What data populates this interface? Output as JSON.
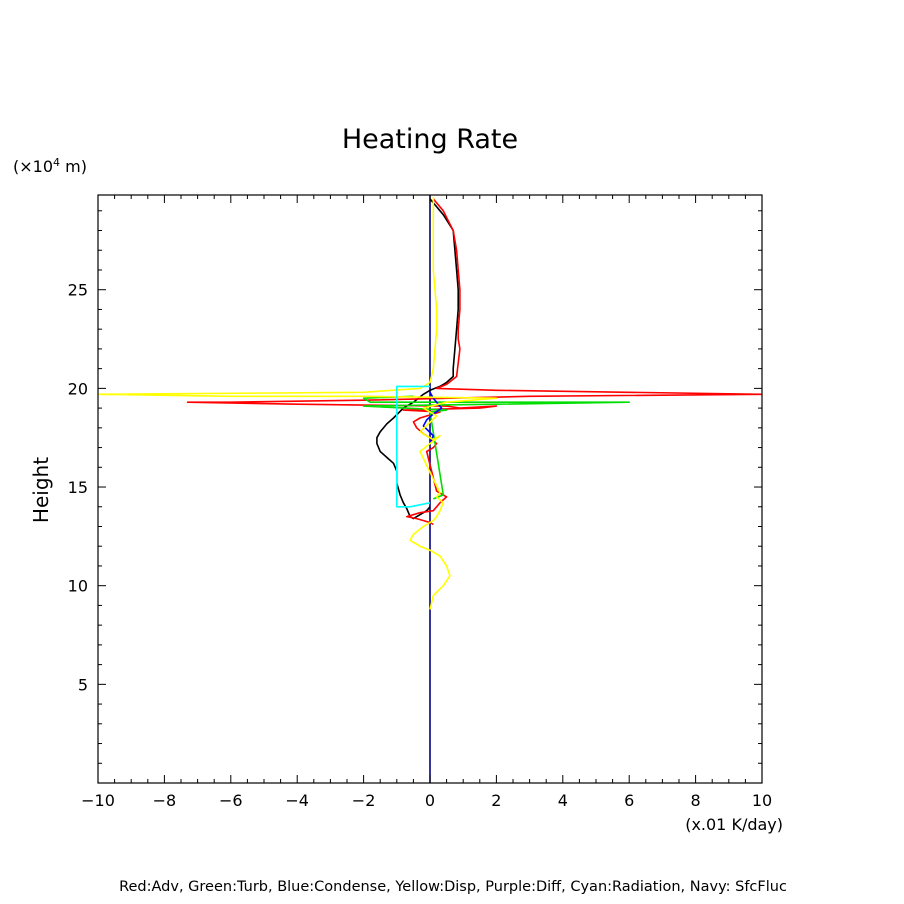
{
  "chart_data": {
    "type": "line",
    "title": "Heating Rate",
    "ylabel": "Height",
    "ylabel_unit": "(×10",
    "ylabel_unit_exp": "4",
    "ylabel_unit_suffix": " m)",
    "xlabel_unit": "(x.01 K/day)",
    "xlim": [
      -10,
      10
    ],
    "ylim": [
      0,
      29.8
    ],
    "x_ticks": [
      -10,
      -8,
      -6,
      -4,
      -2,
      0,
      2,
      4,
      6,
      8,
      10
    ],
    "x_tick_labels": [
      "−10",
      "−8",
      "−6",
      "−4",
      "−2",
      "0",
      "2",
      "4",
      "6",
      "8",
      "10"
    ],
    "y_ticks": [
      5,
      10,
      15,
      20,
      25
    ],
    "y_tick_labels": [
      "5",
      "10",
      "15",
      "20",
      "25"
    ],
    "grid": false,
    "legend_text": "Red:Adv, Green:Turb, Blue:Condense, Yellow:Disp, Purple:Diff, Cyan:Radiation, Navy: SfcFluc",
    "series": [
      {
        "color": "#000080",
        "x": [
          0,
          0
        ],
        "y": [
          0,
          29.8
        ]
      },
      {
        "color": "#000000",
        "x": [
          0,
          0.4,
          0.7,
          0.75,
          0.8,
          0.85,
          0.85,
          0.8,
          0.75,
          0.7,
          0.7,
          0.5,
          0.3,
          0,
          -0.2,
          -0.5,
          -0.8,
          -1.1,
          -1.3,
          -1.5,
          -1.6,
          -1.6,
          -1.5,
          -1.3,
          -1.1,
          -1,
          -1,
          -0.9,
          -0.8,
          -0.7,
          -0.6,
          -0.5,
          -0.3,
          -0.1,
          0
        ],
        "y": [
          29.6,
          28.8,
          28,
          27,
          26,
          25,
          24,
          23,
          22,
          21,
          20.6,
          20.3,
          20.1,
          19.9,
          19.7,
          19.3,
          19,
          18.5,
          18.2,
          17.8,
          17.5,
          17.2,
          16.8,
          16.5,
          16.2,
          15.8,
          15.2,
          14.6,
          14.2,
          13.9,
          13.5,
          13.4,
          13.6,
          13.8,
          14
        ]
      },
      {
        "color": "#ff0000",
        "x": [
          0.1,
          0.4,
          0.7,
          0.8,
          0.85,
          0.9,
          0.9,
          0.85,
          0.85,
          0.9,
          0.8,
          0.5,
          0.2,
          2,
          10,
          3,
          -2,
          -6,
          -7.3,
          -4,
          0.5,
          0.9,
          2,
          1.5,
          -0.8,
          0.3,
          -0.3,
          -0.5,
          -0.4,
          -0.2,
          0,
          0.2,
          0.1,
          -0.1,
          0.2,
          0.5,
          0.3,
          0.1,
          -0.3,
          -0.7,
          -0.4,
          0,
          0.1
        ],
        "y": [
          29.6,
          29,
          28,
          27,
          26,
          25,
          24,
          23,
          22.5,
          22,
          20.6,
          20.2,
          20,
          19.9,
          19.7,
          19.6,
          19.4,
          19.3,
          19.3,
          19.2,
          19.1,
          19,
          19.1,
          19,
          18.9,
          18.8,
          18.5,
          18.3,
          18,
          17.7,
          17.5,
          17.2,
          17,
          16.8,
          14.8,
          14.5,
          14.2,
          13.8,
          13.7,
          13.5,
          13.4,
          13.2,
          13.1
        ]
      },
      {
        "color": "#00dd00",
        "x": [
          -0.5,
          -2,
          -1.8,
          0,
          6,
          2,
          -2,
          0.5,
          0,
          0.4,
          0.1
        ],
        "y": [
          19.6,
          19.5,
          19.3,
          19.3,
          19.3,
          19.2,
          19.1,
          18.9,
          18.8,
          14.6,
          14.4
        ]
      },
      {
        "color": "#0000ff",
        "x": [
          0,
          0.1,
          0.2,
          0.35,
          0.1,
          -0.1,
          -0.2,
          0.1,
          0
        ],
        "y": [
          19.8,
          19.5,
          19.3,
          19,
          18.7,
          18.4,
          18.1,
          17.6,
          17.2
        ]
      },
      {
        "color": "#ffff00",
        "x": [
          0.1,
          0.1,
          0.1,
          0.15,
          0.2,
          0.2,
          0.15,
          0.1,
          0,
          -0.3,
          -2,
          -10,
          -6,
          -2,
          2,
          0.5,
          -0.2,
          0.2,
          -0.3,
          0.1,
          0.3,
          -0.3,
          0.3,
          0.2,
          0.4,
          0.3,
          0.2,
          0.1,
          -0.2,
          -0.5,
          -0.6,
          -0.3,
          0,
          0.3,
          0.5,
          0.6,
          0.4,
          0.1,
          0
        ],
        "y": [
          29.7,
          28,
          26,
          25,
          24,
          23,
          22,
          21,
          20.3,
          20,
          19.8,
          19.7,
          19.6,
          19.6,
          19.5,
          19.3,
          19,
          18.6,
          17.8,
          17.4,
          17.6,
          16.8,
          14.7,
          14.5,
          14.2,
          13.8,
          13.5,
          13.3,
          13,
          12.6,
          12.3,
          12,
          11.8,
          11.5,
          11,
          10.5,
          10,
          9.5,
          8.8
        ]
      },
      {
        "color": "#00ffff",
        "x": [
          0,
          -1.0,
          -1.0,
          -0.6,
          0
        ],
        "y": [
          20.1,
          20.1,
          14.0,
          14.0,
          14.2
        ]
      }
    ]
  }
}
